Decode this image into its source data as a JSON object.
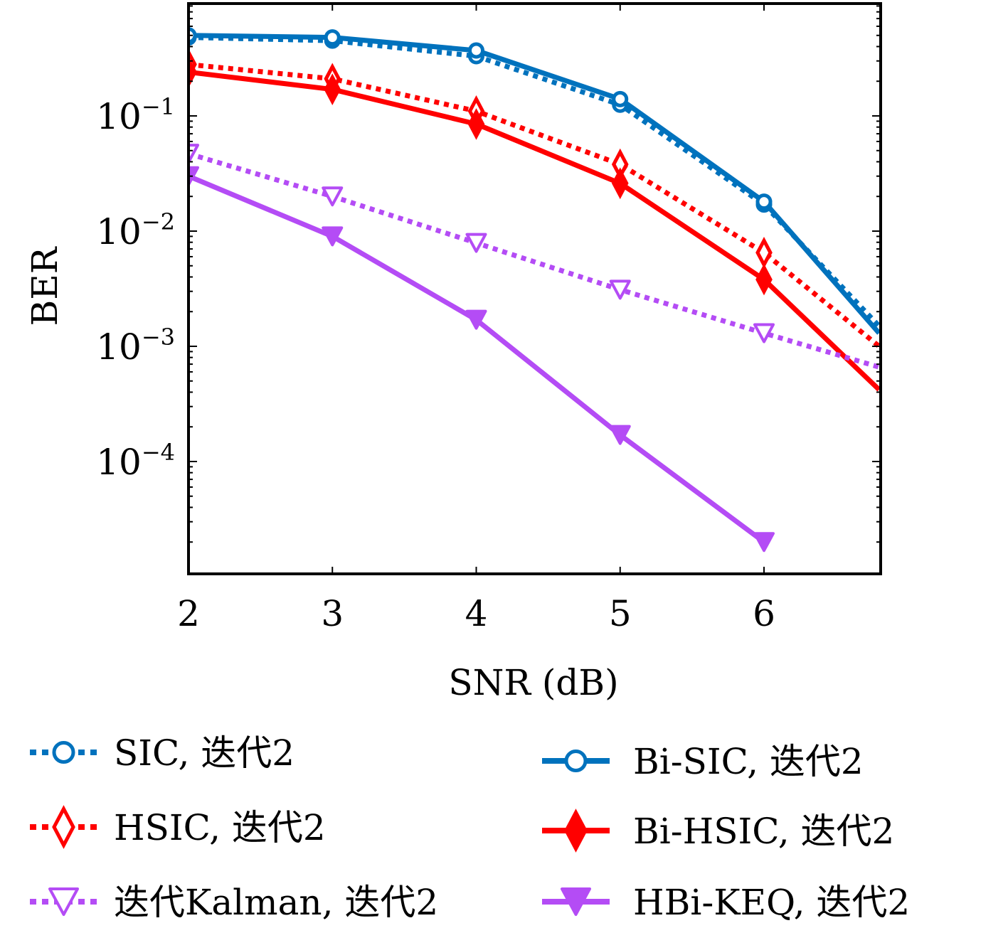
{
  "chart_data": {
    "type": "line",
    "xlabel": "SNR (dB)",
    "ylabel": "BER",
    "xlim": [
      2,
      6.8
    ],
    "ylim": [
      1.2e-05,
      1.0
    ],
    "yscale": "log",
    "x_ticks": [
      2,
      3,
      4,
      5,
      6
    ],
    "y_ticks": [
      {
        "value": 0.1,
        "base": "10",
        "exp": "−1"
      },
      {
        "value": 0.01,
        "base": "10",
        "exp": "−2"
      },
      {
        "value": 0.001,
        "base": "10",
        "exp": "−3"
      },
      {
        "value": 0.0001,
        "base": "10",
        "exp": "−4"
      }
    ],
    "grid": false,
    "legend_position": "below",
    "series": [
      {
        "name": "SIC, 迭代2",
        "color": "#0072BD",
        "dash": "dotted",
        "marker": "circle",
        "marker_fill": "open",
        "x": [
          2,
          3,
          4,
          5,
          6,
          6.8
        ],
        "y": [
          0.48,
          0.45,
          0.33,
          0.125,
          0.017,
          0.0015
        ]
      },
      {
        "name": "Bi-SIC, 迭代2",
        "color": "#0072BD",
        "dash": "solid",
        "marker": "circle",
        "marker_fill": "open",
        "x": [
          2,
          3,
          4,
          5,
          6,
          6.8
        ],
        "y": [
          0.5,
          0.48,
          0.37,
          0.14,
          0.018,
          0.0013
        ]
      },
      {
        "name": "HSIC, 迭代2",
        "color": "#FF0000",
        "dash": "dotted",
        "marker": "diamond",
        "marker_fill": "open",
        "x": [
          2,
          3,
          4,
          5,
          6,
          6.8
        ],
        "y": [
          0.28,
          0.21,
          0.11,
          0.038,
          0.0065,
          0.001
        ]
      },
      {
        "name": "Bi-HSIC, 迭代2",
        "color": "#FF0000",
        "dash": "solid",
        "marker": "diamond",
        "marker_fill": "filled",
        "x": [
          2,
          3,
          4,
          5,
          6,
          6.8
        ],
        "y": [
          0.24,
          0.17,
          0.085,
          0.026,
          0.0038,
          0.00042
        ]
      },
      {
        "name": "迭代Kalman, 迭代2",
        "color": "#B44CF5",
        "dash": "dotted",
        "marker": "triangle-down",
        "marker_fill": "open",
        "x": [
          2,
          3,
          4,
          5,
          6,
          6.8
        ],
        "y": [
          0.047,
          0.02,
          0.0079,
          0.0031,
          0.0013,
          0.00066
        ]
      },
      {
        "name": "HBi-KEQ, 迭代2",
        "color": "#B44CF5",
        "dash": "solid",
        "marker": "triangle-down",
        "marker_fill": "filled",
        "x": [
          2,
          3,
          4,
          5,
          6
        ],
        "y": [
          0.03,
          0.009,
          0.0017,
          0.00017,
          2e-05
        ]
      }
    ],
    "legend_order": [
      0,
      1,
      2,
      3,
      4,
      5
    ]
  }
}
